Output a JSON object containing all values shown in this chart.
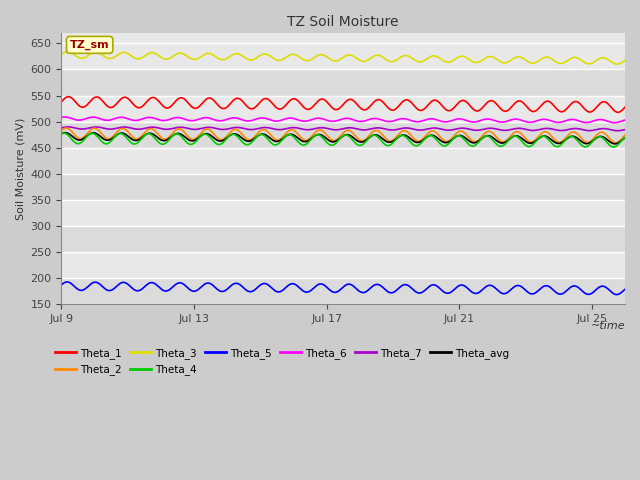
{
  "title": "TZ Soil Moisture",
  "ylabel": "Soil Moisture (mV)",
  "xlabel": "~time",
  "ylim": [
    150,
    670
  ],
  "yticks": [
    150,
    200,
    250,
    300,
    350,
    400,
    450,
    500,
    550,
    600,
    650
  ],
  "xtick_labels": [
    "Jul 9",
    "Jul 13",
    "Jul 17",
    "Jul 21",
    "Jul 25"
  ],
  "n_days": 17,
  "figure_bg": "#cccccc",
  "plot_bg": "#e8e8e8",
  "grid_color": "#ffffff",
  "series": {
    "Theta_1": {
      "color": "#ff0000",
      "base": 538,
      "amplitude": 10,
      "cycles": 20,
      "trend": -0.6,
      "phase": 0.0
    },
    "Theta_2": {
      "color": "#ff8800",
      "base": 478,
      "amplitude": 10,
      "cycles": 20,
      "trend": -0.5,
      "phase": 0.5
    },
    "Theta_3": {
      "color": "#dddd00",
      "base": 628,
      "amplitude": 6,
      "cycles": 20,
      "trend": -0.7,
      "phase": 0.2
    },
    "Theta_4": {
      "color": "#00cc00",
      "base": 468,
      "amplitude": 10,
      "cycles": 20,
      "trend": -0.4,
      "phase": 1.0
    },
    "Theta_5": {
      "color": "#0000ff",
      "base": 185,
      "amplitude": 8,
      "cycles": 20,
      "trend": -0.5,
      "phase": 0.3
    },
    "Theta_6": {
      "color": "#ff00ff",
      "base": 506,
      "amplitude": 3,
      "cycles": 20,
      "trend": -0.3,
      "phase": 0.8
    },
    "Theta_7": {
      "color": "#aa00cc",
      "base": 488,
      "amplitude": 2,
      "cycles": 20,
      "trend": -0.2,
      "phase": 0.1
    },
    "Theta_avg": {
      "color": "#000000",
      "base": 472,
      "amplitude": 7,
      "cycles": 20,
      "trend": -0.45,
      "phase": 0.7
    }
  },
  "legend_label": "TZ_sm",
  "legend_box_facecolor": "#ffffcc",
  "legend_box_edgecolor": "#aaaa00",
  "legend_text_color": "#990000",
  "plot_order": [
    "Theta_3",
    "Theta_5",
    "Theta_1",
    "Theta_6",
    "Theta_7",
    "Theta_2",
    "Theta_avg",
    "Theta_4"
  ],
  "legend_row1": [
    "Theta_1",
    "Theta_2",
    "Theta_3",
    "Theta_4",
    "Theta_5",
    "Theta_6"
  ],
  "legend_row2": [
    "Theta_7",
    "Theta_avg"
  ]
}
